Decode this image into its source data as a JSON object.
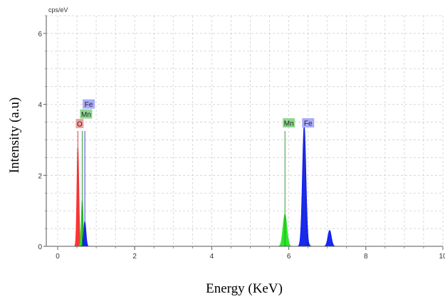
{
  "chart_data": {
    "type": "area",
    "title": "",
    "xlabel": "Energy (KeV)",
    "ylabel": "Intensity (a.u)",
    "y_unit": "cps/eV",
    "xlim": [
      0,
      10
    ],
    "ylim": [
      0,
      6.5
    ],
    "x_ticks": [
      "0",
      "2",
      "4",
      "6",
      "8",
      "10"
    ],
    "y_ticks": [
      "0",
      "2",
      "4",
      "6"
    ],
    "grid": true,
    "legend": "none",
    "series": [
      {
        "name": "O",
        "color": "#ff2b2b",
        "peaks": [
          {
            "x": 0.525,
            "height": 2.8,
            "sigma": 0.025
          }
        ]
      },
      {
        "name": "Mn",
        "color": "#22e61e",
        "peaks": [
          {
            "x": 0.637,
            "height": 1.3,
            "sigma": 0.025
          },
          {
            "x": 5.9,
            "height": 0.9,
            "sigma": 0.05
          },
          {
            "x": 6.49,
            "height": 0.12,
            "sigma": 0.04
          }
        ]
      },
      {
        "name": "Fe",
        "color": "#0a1cf0",
        "peaks": [
          {
            "x": 0.705,
            "height": 0.7,
            "sigma": 0.03
          },
          {
            "x": 6.4,
            "height": 3.4,
            "sigma": 0.045
          },
          {
            "x": 7.06,
            "height": 0.45,
            "sigma": 0.045
          }
        ]
      }
    ],
    "annotations": [
      {
        "label": "O",
        "x": 0.525,
        "tag_level": 3.45,
        "line_top": 3.25,
        "color": "#f4a0a0"
      },
      {
        "label": "Mn",
        "x": 0.637,
        "tag_level": 3.72,
        "line_top": 3.25,
        "color": "#8fd88f"
      },
      {
        "label": "Fe",
        "x": 0.705,
        "tag_level": 4.0,
        "line_top": 3.25,
        "color": "#a9a9ff"
      },
      {
        "label": "Mn",
        "x": 5.9,
        "tag_level": 3.47,
        "line_top": 3.25,
        "color": "#8fd88f"
      },
      {
        "label": "Fe",
        "x": 6.4,
        "tag_level": 3.47,
        "line_top": 3.25,
        "color": "#a9a9ff"
      }
    ]
  }
}
